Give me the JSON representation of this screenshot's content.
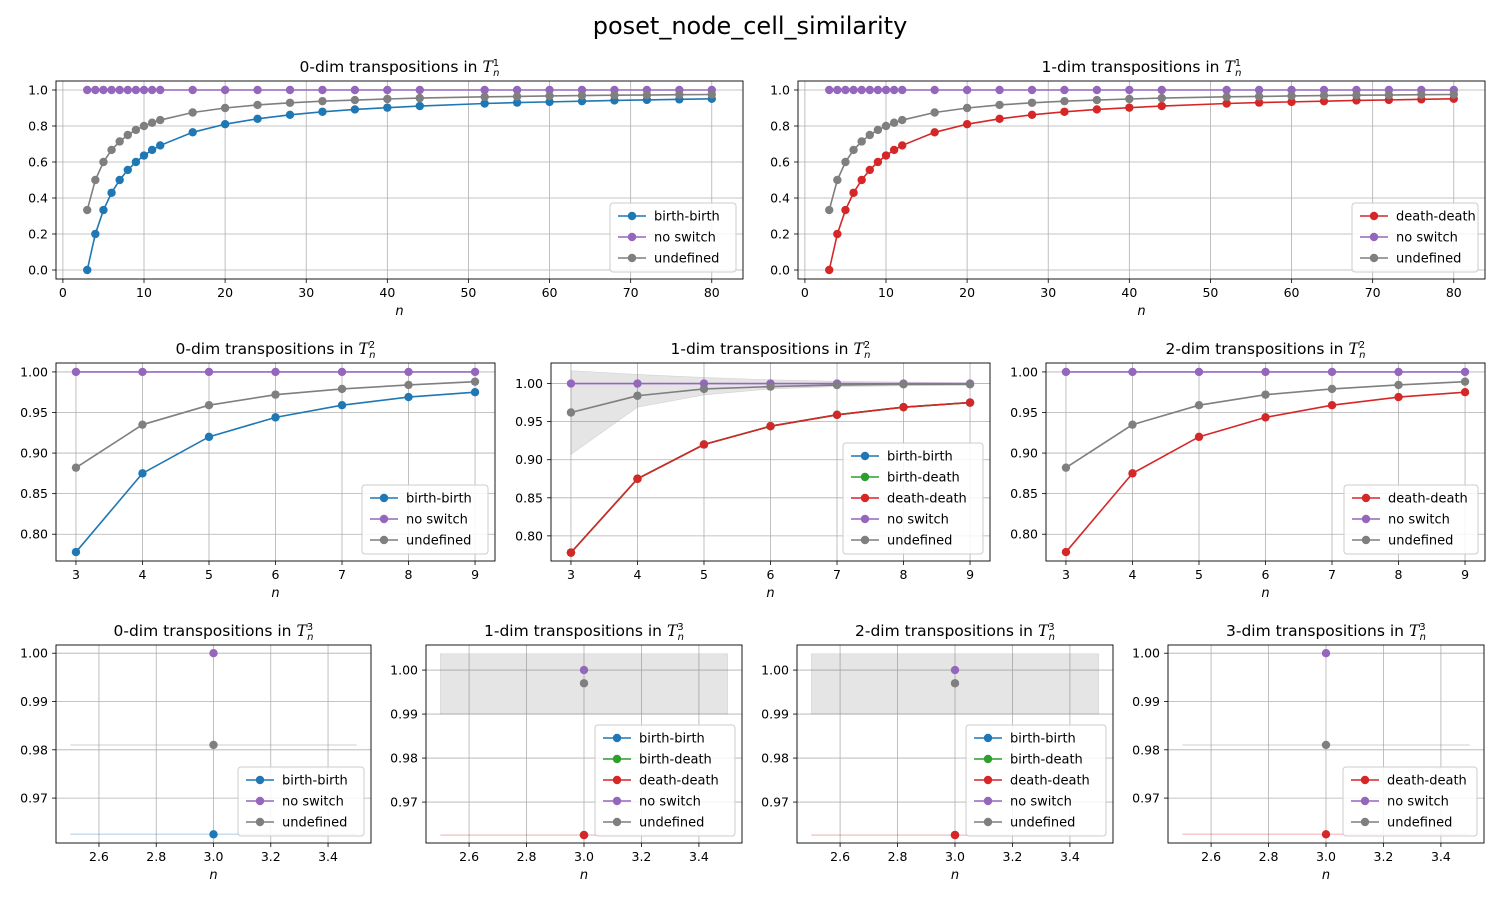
{
  "figure": {
    "title": "poset_node_cell_similarity"
  },
  "colors": {
    "birth-birth": "#1f77b4",
    "birth-death": "#2ca02c",
    "death-death": "#d62728",
    "no switch": "#9467bd",
    "undefined": "#7f7f7f",
    "grid": "#b0b0b0",
    "band": "#7f7f7f"
  },
  "chart_data": [
    {
      "type": "line",
      "title": "0-dim transpositions in",
      "title_math": {
        "base": "T",
        "sup": "1",
        "sub": "n"
      },
      "xlabel": "n",
      "ylabel": "",
      "xlim": [
        -0.85,
        83.85
      ],
      "ylim": [
        -0.05,
        1.05
      ],
      "xticks": [
        0,
        10,
        20,
        30,
        40,
        50,
        60,
        70,
        80
      ],
      "yticks": [
        0.0,
        0.2,
        0.4,
        0.6,
        0.8,
        1.0
      ],
      "ytick_labels": [
        "0.0",
        "0.2",
        "0.4",
        "0.6",
        "0.8",
        "1.0"
      ],
      "grid": true,
      "legend": "lower right",
      "x": [
        3,
        4,
        5,
        6,
        7,
        8,
        9,
        10,
        11,
        12,
        16,
        20,
        24,
        28,
        32,
        36,
        40,
        44,
        52,
        56,
        60,
        64,
        68,
        72,
        76,
        80
      ],
      "series": [
        {
          "name": "birth-birth",
          "values": [
            0.0,
            0.2,
            0.333,
            0.429,
            0.5,
            0.556,
            0.6,
            0.636,
            0.667,
            0.692,
            0.765,
            0.81,
            0.84,
            0.862,
            0.879,
            0.892,
            0.902,
            0.911,
            0.925,
            0.93,
            0.934,
            0.938,
            0.942,
            0.945,
            0.948,
            0.951
          ]
        },
        {
          "name": "no switch",
          "values": [
            1,
            1,
            1,
            1,
            1,
            1,
            1,
            1,
            1,
            1,
            1,
            1,
            1,
            1,
            1,
            1,
            1,
            1,
            1,
            1,
            1,
            1,
            1,
            1,
            1,
            1
          ]
        },
        {
          "name": "undefined",
          "values": [
            0.333,
            0.5,
            0.6,
            0.667,
            0.714,
            0.75,
            0.778,
            0.8,
            0.818,
            0.833,
            0.875,
            0.9,
            0.917,
            0.929,
            0.938,
            0.944,
            0.95,
            0.955,
            0.962,
            0.964,
            0.967,
            0.969,
            0.971,
            0.972,
            0.974,
            0.975
          ]
        }
      ]
    },
    {
      "type": "line",
      "title": "1-dim transpositions in",
      "title_math": {
        "base": "T",
        "sup": "1",
        "sub": "n"
      },
      "xlabel": "n",
      "ylabel": "",
      "xlim": [
        -0.85,
        83.85
      ],
      "ylim": [
        -0.05,
        1.05
      ],
      "xticks": [
        0,
        10,
        20,
        30,
        40,
        50,
        60,
        70,
        80
      ],
      "yticks": [
        0.0,
        0.2,
        0.4,
        0.6,
        0.8,
        1.0
      ],
      "ytick_labels": [
        "0.0",
        "0.2",
        "0.4",
        "0.6",
        "0.8",
        "1.0"
      ],
      "grid": true,
      "legend": "lower right",
      "x": [
        3,
        4,
        5,
        6,
        7,
        8,
        9,
        10,
        11,
        12,
        16,
        20,
        24,
        28,
        32,
        36,
        40,
        44,
        52,
        56,
        60,
        64,
        68,
        72,
        76,
        80
      ],
      "series": [
        {
          "name": "death-death",
          "values": [
            0.0,
            0.2,
            0.333,
            0.429,
            0.5,
            0.556,
            0.6,
            0.636,
            0.667,
            0.692,
            0.765,
            0.81,
            0.84,
            0.862,
            0.879,
            0.892,
            0.902,
            0.911,
            0.925,
            0.93,
            0.934,
            0.938,
            0.942,
            0.945,
            0.948,
            0.951
          ]
        },
        {
          "name": "no switch",
          "values": [
            1,
            1,
            1,
            1,
            1,
            1,
            1,
            1,
            1,
            1,
            1,
            1,
            1,
            1,
            1,
            1,
            1,
            1,
            1,
            1,
            1,
            1,
            1,
            1,
            1,
            1
          ]
        },
        {
          "name": "undefined",
          "values": [
            0.333,
            0.5,
            0.6,
            0.667,
            0.714,
            0.75,
            0.778,
            0.8,
            0.818,
            0.833,
            0.875,
            0.9,
            0.917,
            0.929,
            0.938,
            0.944,
            0.95,
            0.955,
            0.962,
            0.964,
            0.967,
            0.969,
            0.971,
            0.972,
            0.974,
            0.975
          ]
        }
      ]
    },
    {
      "type": "line",
      "title": "0-dim transpositions in",
      "title_math": {
        "base": "T",
        "sup": "2",
        "sub": "n"
      },
      "xlabel": "n",
      "ylabel": "",
      "xlim": [
        2.7,
        9.3
      ],
      "ylim": [
        0.767,
        1.011
      ],
      "xticks": [
        3,
        4,
        5,
        6,
        7,
        8,
        9
      ],
      "yticks": [
        0.8,
        0.85,
        0.9,
        0.95,
        1.0
      ],
      "ytick_labels": [
        "0.80",
        "0.85",
        "0.90",
        "0.95",
        "1.00"
      ],
      "grid": true,
      "legend": "lower right",
      "x": [
        3,
        4,
        5,
        6,
        7,
        8,
        9
      ],
      "series": [
        {
          "name": "birth-birth",
          "values": [
            0.778,
            0.875,
            0.92,
            0.944,
            0.959,
            0.969,
            0.975
          ]
        },
        {
          "name": "no switch",
          "values": [
            1,
            1,
            1,
            1,
            1,
            1,
            1
          ]
        },
        {
          "name": "undefined",
          "values": [
            0.882,
            0.935,
            0.959,
            0.972,
            0.979,
            0.984,
            0.988
          ]
        }
      ]
    },
    {
      "type": "line",
      "title": "1-dim transpositions in",
      "title_math": {
        "base": "T",
        "sup": "2",
        "sub": "n"
      },
      "xlabel": "n",
      "ylabel": "",
      "xlim": [
        2.7,
        9.3
      ],
      "ylim": [
        0.767,
        1.027
      ],
      "xticks": [
        3,
        4,
        5,
        6,
        7,
        8,
        9
      ],
      "yticks": [
        0.8,
        0.85,
        0.9,
        0.95,
        1.0
      ],
      "ytick_labels": [
        "0.80",
        "0.85",
        "0.90",
        "0.95",
        "1.00"
      ],
      "grid": true,
      "legend": "lower right",
      "x": [
        3,
        4,
        5,
        6,
        7,
        8,
        9
      ],
      "series": [
        {
          "name": "birth-birth",
          "values": [
            0.778,
            0.875,
            0.92,
            0.944,
            0.959,
            0.969,
            0.975
          ]
        },
        {
          "name": "birth-death",
          "values": [
            0.778,
            0.875,
            0.92,
            0.944,
            0.959,
            0.969,
            0.975
          ]
        },
        {
          "name": "death-death",
          "values": [
            0.778,
            0.875,
            0.92,
            0.944,
            0.959,
            0.969,
            0.975
          ]
        },
        {
          "name": "no switch",
          "values": [
            1,
            1,
            1,
            1,
            1,
            1,
            1
          ]
        },
        {
          "name": "undefined",
          "values": [
            0.962,
            0.984,
            0.993,
            0.996,
            0.998,
            0.999,
            0.999
          ]
        }
      ],
      "bands": [
        {
          "series": "undefined",
          "lower": [
            0.907,
            0.969,
            0.985,
            0.993,
            0.996,
            0.997,
            0.998
          ],
          "upper": [
            1.017,
            1.012,
            1.008,
            1.005,
            1.003,
            1.002,
            1.001
          ]
        }
      ]
    },
    {
      "type": "line",
      "title": "2-dim transpositions in",
      "title_math": {
        "base": "T",
        "sup": "2",
        "sub": "n"
      },
      "xlabel": "n",
      "ylabel": "",
      "xlim": [
        2.7,
        9.3
      ],
      "ylim": [
        0.767,
        1.011
      ],
      "xticks": [
        3,
        4,
        5,
        6,
        7,
        8,
        9
      ],
      "yticks": [
        0.8,
        0.85,
        0.9,
        0.95,
        1.0
      ],
      "ytick_labels": [
        "0.80",
        "0.85",
        "0.90",
        "0.95",
        "1.00"
      ],
      "grid": true,
      "legend": "lower right",
      "x": [
        3,
        4,
        5,
        6,
        7,
        8,
        9
      ],
      "series": [
        {
          "name": "death-death",
          "values": [
            0.778,
            0.875,
            0.92,
            0.944,
            0.959,
            0.969,
            0.975
          ]
        },
        {
          "name": "no switch",
          "values": [
            1,
            1,
            1,
            1,
            1,
            1,
            1
          ]
        },
        {
          "name": "undefined",
          "values": [
            0.882,
            0.935,
            0.959,
            0.972,
            0.979,
            0.984,
            0.988
          ]
        }
      ]
    },
    {
      "type": "scatter",
      "title": "0-dim transpositions in",
      "title_math": {
        "base": "T",
        "sup": "3",
        "sub": "n"
      },
      "xlabel": "n",
      "ylabel": "",
      "xlim": [
        2.45,
        3.55
      ],
      "ylim": [
        0.9607,
        1.0017
      ],
      "xticks": [
        2.6,
        2.8,
        3.0,
        3.2,
        3.4
      ],
      "xtick_labels": [
        "2.6",
        "2.8",
        "3.0",
        "3.2",
        "3.4"
      ],
      "yticks": [
        0.97,
        0.98,
        0.99,
        1.0
      ],
      "ytick_labels": [
        "0.97",
        "0.98",
        "0.99",
        "1.00"
      ],
      "grid": true,
      "legend": "lower right",
      "x": [
        3
      ],
      "series": [
        {
          "name": "birth-birth",
          "values": [
            0.9625
          ]
        },
        {
          "name": "no switch",
          "values": [
            1.0
          ]
        },
        {
          "name": "undefined",
          "values": [
            0.981
          ]
        }
      ],
      "hbands": [
        {
          "series": "birth-birth",
          "y": 0.9625,
          "x": [
            2.5,
            3.5
          ]
        },
        {
          "series": "undefined",
          "y": 0.981,
          "x": [
            2.5,
            3.5
          ]
        }
      ]
    },
    {
      "type": "scatter",
      "title": "1-dim transpositions in",
      "title_math": {
        "base": "T",
        "sup": "3",
        "sub": "n"
      },
      "xlabel": "n",
      "ylabel": "",
      "xlim": [
        2.45,
        3.55
      ],
      "ylim": [
        0.9607,
        1.0057
      ],
      "xticks": [
        2.6,
        2.8,
        3.0,
        3.2,
        3.4
      ],
      "xtick_labels": [
        "2.6",
        "2.8",
        "3.0",
        "3.2",
        "3.4"
      ],
      "yticks": [
        0.97,
        0.98,
        0.99,
        1.0
      ],
      "ytick_labels": [
        "0.97",
        "0.98",
        "0.99",
        "1.00"
      ],
      "grid": true,
      "legend": "lower right",
      "x": [
        3
      ],
      "series": [
        {
          "name": "birth-birth",
          "values": [
            0.9625
          ]
        },
        {
          "name": "birth-death",
          "values": [
            0.9625
          ]
        },
        {
          "name": "death-death",
          "values": [
            0.9625
          ]
        },
        {
          "name": "no switch",
          "values": [
            1.0
          ]
        },
        {
          "name": "undefined",
          "values": [
            0.997
          ]
        }
      ],
      "bands": [
        {
          "series": "undefined",
          "x": [
            2.5,
            3.5
          ],
          "lower": [
            0.99,
            0.99
          ],
          "upper": [
            1.0037,
            1.0037
          ]
        }
      ],
      "hbands": [
        {
          "series": "death-death",
          "y": 0.9625,
          "x": [
            2.5,
            3.5
          ]
        }
      ]
    },
    {
      "type": "scatter",
      "title": "2-dim transpositions in",
      "title_math": {
        "base": "T",
        "sup": "3",
        "sub": "n"
      },
      "xlabel": "n",
      "ylabel": "",
      "xlim": [
        2.45,
        3.55
      ],
      "ylim": [
        0.9607,
        1.0057
      ],
      "xticks": [
        2.6,
        2.8,
        3.0,
        3.2,
        3.4
      ],
      "xtick_labels": [
        "2.6",
        "2.8",
        "3.0",
        "3.2",
        "3.4"
      ],
      "yticks": [
        0.97,
        0.98,
        0.99,
        1.0
      ],
      "ytick_labels": [
        "0.97",
        "0.98",
        "0.99",
        "1.00"
      ],
      "grid": true,
      "legend": "lower right",
      "x": [
        3
      ],
      "series": [
        {
          "name": "birth-birth",
          "values": [
            0.9625
          ]
        },
        {
          "name": "birth-death",
          "values": [
            0.9625
          ]
        },
        {
          "name": "death-death",
          "values": [
            0.9625
          ]
        },
        {
          "name": "no switch",
          "values": [
            1.0
          ]
        },
        {
          "name": "undefined",
          "values": [
            0.997
          ]
        }
      ],
      "bands": [
        {
          "series": "undefined",
          "x": [
            2.5,
            3.5
          ],
          "lower": [
            0.99,
            0.99
          ],
          "upper": [
            1.0037,
            1.0037
          ]
        }
      ],
      "hbands": [
        {
          "series": "death-death",
          "y": 0.9625,
          "x": [
            2.5,
            3.5
          ]
        }
      ]
    },
    {
      "type": "scatter",
      "title": "3-dim transpositions in",
      "title_math": {
        "base": "T",
        "sup": "3",
        "sub": "n"
      },
      "xlabel": "n",
      "ylabel": "",
      "xlim": [
        2.45,
        3.55
      ],
      "ylim": [
        0.9607,
        1.0017
      ],
      "xticks": [
        2.6,
        2.8,
        3.0,
        3.2,
        3.4
      ],
      "xtick_labels": [
        "2.6",
        "2.8",
        "3.0",
        "3.2",
        "3.4"
      ],
      "yticks": [
        0.97,
        0.98,
        0.99,
        1.0
      ],
      "ytick_labels": [
        "0.97",
        "0.98",
        "0.99",
        "1.00"
      ],
      "grid": true,
      "legend": "lower right",
      "x": [
        3
      ],
      "series": [
        {
          "name": "death-death",
          "values": [
            0.9625
          ]
        },
        {
          "name": "no switch",
          "values": [
            1.0
          ]
        },
        {
          "name": "undefined",
          "values": [
            0.981
          ]
        }
      ],
      "hbands": [
        {
          "series": "death-death",
          "y": 0.9625,
          "x": [
            2.5,
            3.5
          ]
        },
        {
          "series": "undefined",
          "y": 0.981,
          "x": [
            2.5,
            3.5
          ]
        }
      ]
    }
  ]
}
